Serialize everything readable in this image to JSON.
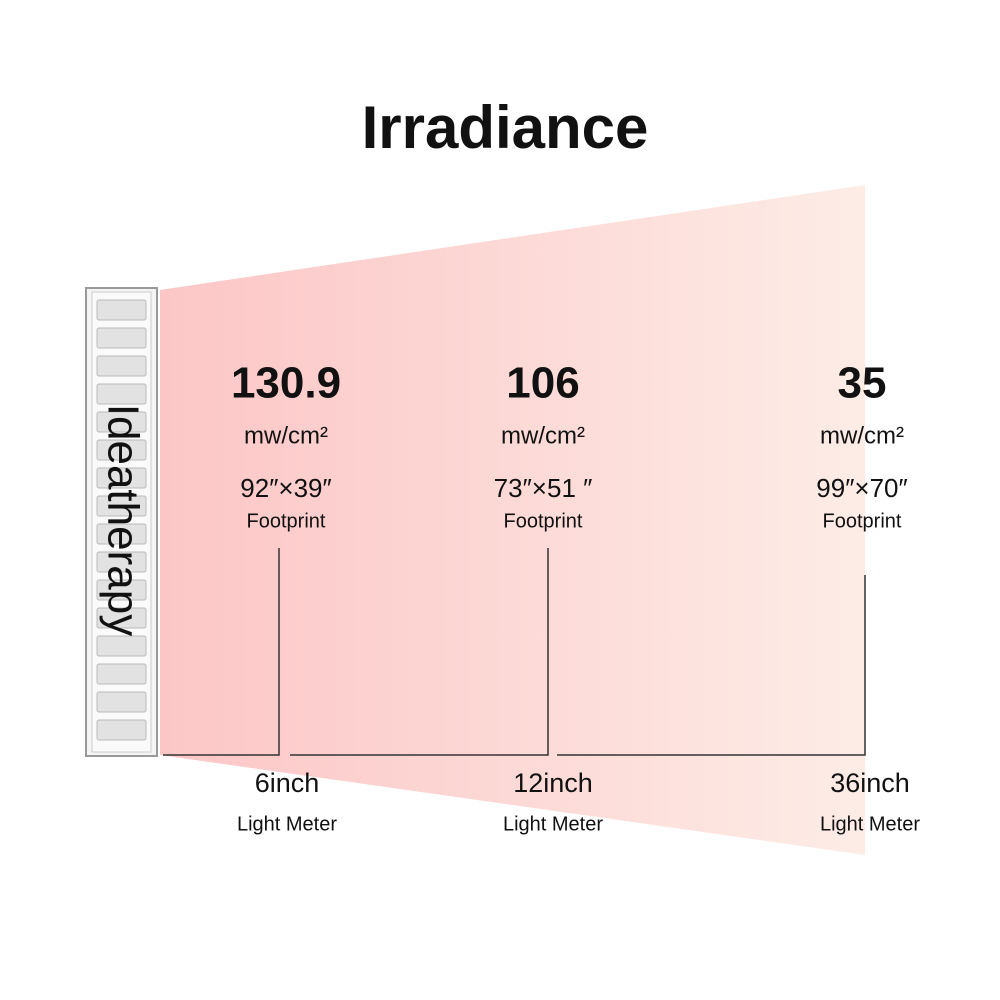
{
  "title": "Irradiance",
  "brand": "Ideatherapy",
  "measurements": [
    {
      "value": "130.9",
      "unit": "mw/cm²",
      "footprint": "92″×39″",
      "footprint_label": "Footprint",
      "distance": "6inch",
      "meter_label": "Light Meter"
    },
    {
      "value": "106",
      "unit": "mw/cm²",
      "footprint": "73″×51 ″",
      "footprint_label": "Footprint",
      "distance": "12inch",
      "meter_label": "Light Meter"
    },
    {
      "value": "35",
      "unit": "mw/cm²",
      "footprint": "99″×70″",
      "footprint_label": "Footprint",
      "distance": "36inch",
      "meter_label": "Light Meter"
    }
  ]
}
